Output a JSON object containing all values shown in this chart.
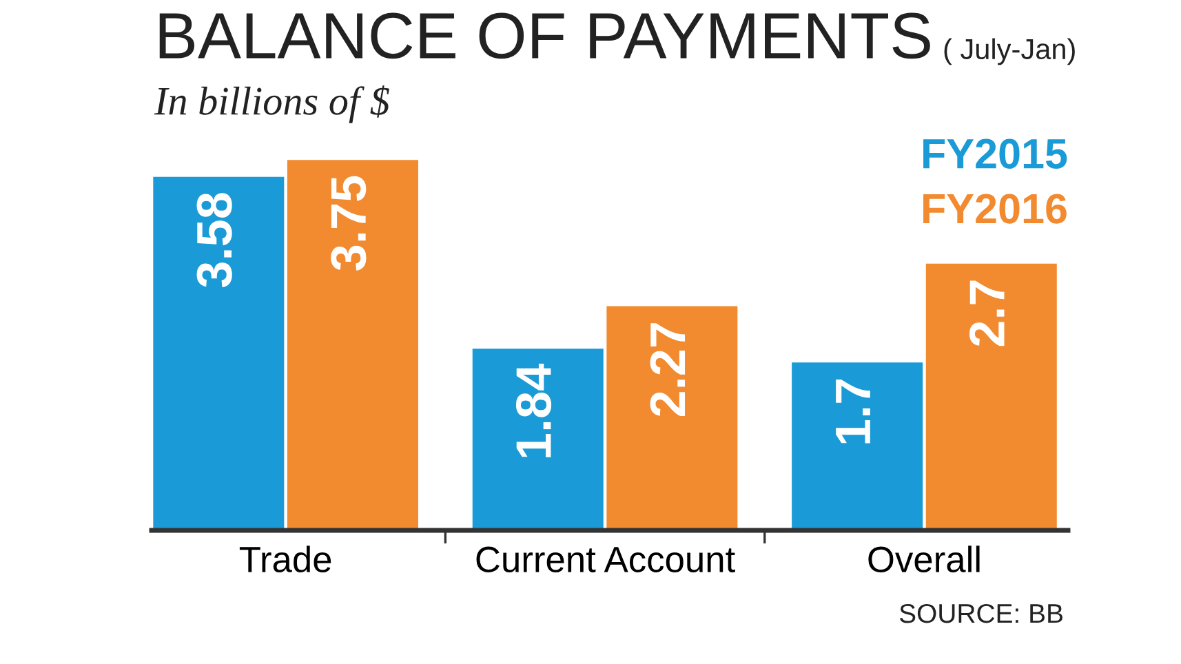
{
  "chart_data": {
    "type": "bar",
    "title": "BALANCE OF PAYMENTS",
    "subtitle": "In billions of $",
    "annotations": [
      "( July-Jan)",
      "SOURCE: BB"
    ],
    "categories": [
      "Trade",
      "Current Account",
      "Overall"
    ],
    "series": [
      {
        "name": "FY2015",
        "color": "#1a9ad6",
        "values": [
          3.58,
          1.84,
          1.7
        ]
      },
      {
        "name": "FY2016",
        "color": "#f28a30",
        "values": [
          3.75,
          2.27,
          2.7
        ]
      }
    ],
    "data_labels": true,
    "grid": false
  }
}
